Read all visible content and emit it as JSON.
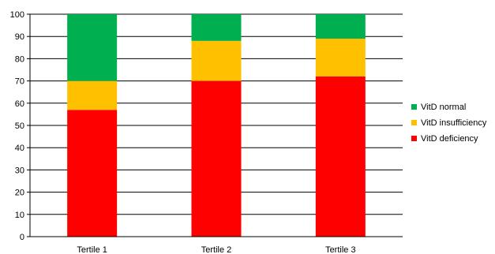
{
  "chart_data": {
    "type": "bar",
    "stacked": true,
    "categories": [
      "Tertile 1",
      "Tertile 2",
      "Tertile 3"
    ],
    "series": [
      {
        "name": "VitD deficiency",
        "color": "#ff0000",
        "values": [
          57,
          70,
          72
        ]
      },
      {
        "name": "VitD insufficiency",
        "color": "#ffc000",
        "values": [
          13,
          18,
          17
        ]
      },
      {
        "name": "VitD normal",
        "color": "#00b050",
        "values": [
          30,
          12,
          11
        ]
      }
    ],
    "legend_order": [
      "VitD normal",
      "VitD insufficiency",
      "VitD deficiency"
    ],
    "ylim": [
      0,
      100
    ],
    "yticks": [
      "0",
      "10",
      "20",
      "30",
      "40",
      "50",
      "60",
      "70",
      "80",
      "90",
      "100"
    ],
    "grid": true,
    "legend_position": "right",
    "title": "",
    "xlabel": "",
    "ylabel": ""
  }
}
